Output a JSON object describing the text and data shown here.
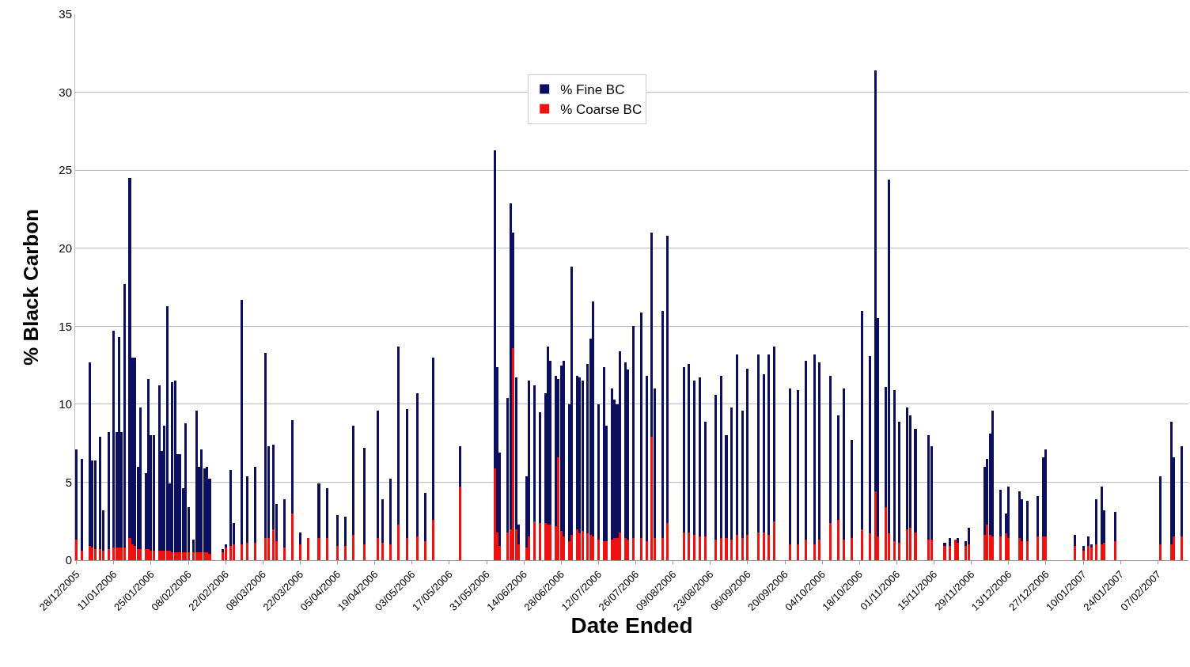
{
  "chart_data": {
    "type": "bar",
    "stacked": true,
    "xlabel": "Date Ended",
    "ylabel": "% Black Carbon",
    "ylim": [
      0,
      35
    ],
    "yticks": [
      0,
      5,
      10,
      15,
      20,
      25,
      30,
      35
    ],
    "grid": "y",
    "legend": "top",
    "xlim": [
      "2005-12-27T12:00",
      "2007-02-18T12:00"
    ],
    "xticks": [
      {
        "value": "2005-12-28",
        "label": "28/12/2005"
      },
      {
        "value": "2006-01-11",
        "label": "11/01/2006"
      },
      {
        "value": "2006-01-25",
        "label": "25/01/2006"
      },
      {
        "value": "2006-02-08",
        "label": "08/02/2006"
      },
      {
        "value": "2006-02-22",
        "label": "22/02/2006"
      },
      {
        "value": "2006-03-08",
        "label": "08/03/2006"
      },
      {
        "value": "2006-03-22",
        "label": "22/03/2006"
      },
      {
        "value": "2006-04-05",
        "label": "05/04/2006"
      },
      {
        "value": "2006-04-19",
        "label": "19/04/2006"
      },
      {
        "value": "2006-05-03",
        "label": "03/05/2006"
      },
      {
        "value": "2006-05-17",
        "label": "17/05/2006"
      },
      {
        "value": "2006-05-31",
        "label": "31/05/2006"
      },
      {
        "value": "2006-06-14",
        "label": "14/06/2006"
      },
      {
        "value": "2006-06-28",
        "label": "28/06/2006"
      },
      {
        "value": "2006-07-12",
        "label": "12/07/2006"
      },
      {
        "value": "2006-07-26",
        "label": "26/07/2006"
      },
      {
        "value": "2006-08-09",
        "label": "09/08/2006"
      },
      {
        "value": "2006-08-23",
        "label": "23/08/2006"
      },
      {
        "value": "2006-09-06",
        "label": "06/09/2006"
      },
      {
        "value": "2006-09-20",
        "label": "20/09/2006"
      },
      {
        "value": "2006-10-04",
        "label": "04/10/2006"
      },
      {
        "value": "2006-10-18",
        "label": "18/10/2006"
      },
      {
        "value": "2006-11-01",
        "label": "01/11/2006"
      },
      {
        "value": "2006-11-15",
        "label": "15/11/2006"
      },
      {
        "value": "2006-11-29",
        "label": "29/11/2006"
      },
      {
        "value": "2006-12-13",
        "label": "13/12/2006"
      },
      {
        "value": "2006-12-27",
        "label": "27/12/2006"
      },
      {
        "value": "2007-01-10",
        "label": "10/01/2007"
      },
      {
        "value": "2007-01-24",
        "label": "24/01/2007"
      },
      {
        "value": "2007-02-07",
        "label": "07/02/2007"
      }
    ],
    "x": [
      "2005-12-28",
      "2005-12-30",
      "2006-01-02",
      "2006-01-03",
      "2006-01-04",
      "2006-01-06",
      "2006-01-07",
      "2006-01-09",
      "2006-01-11",
      "2006-01-12",
      "2006-01-13",
      "2006-01-14",
      "2006-01-15",
      "2006-01-17",
      "2006-01-18",
      "2006-01-19",
      "2006-01-20",
      "2006-01-21",
      "2006-01-23",
      "2006-01-24",
      "2006-01-25",
      "2006-01-26",
      "2006-01-28",
      "2006-01-29",
      "2006-01-30",
      "2006-01-31",
      "2006-02-01",
      "2006-02-02",
      "2006-02-03",
      "2006-02-04",
      "2006-02-05",
      "2006-02-06",
      "2006-02-07",
      "2006-02-08",
      "2006-02-10",
      "2006-02-11",
      "2006-02-12",
      "2006-02-13",
      "2006-02-14",
      "2006-02-15",
      "2006-02-16",
      "2006-02-21",
      "2006-02-22",
      "2006-02-24",
      "2006-02-25",
      "2006-02-28",
      "2006-03-02",
      "2006-03-05",
      "2006-03-09",
      "2006-03-10",
      "2006-03-12",
      "2006-03-13",
      "2006-03-16",
      "2006-03-19",
      "2006-03-22",
      "2006-03-25",
      "2006-03-29",
      "2006-04-01",
      "2006-04-05",
      "2006-04-08",
      "2006-04-11",
      "2006-04-15",
      "2006-04-20",
      "2006-04-22",
      "2006-04-25",
      "2006-04-28",
      "2006-05-01",
      "2006-05-05",
      "2006-05-08",
      "2006-05-11",
      "2006-05-21",
      "2006-06-03",
      "2006-06-04",
      "2006-06-05",
      "2006-06-08",
      "2006-06-09",
      "2006-06-10",
      "2006-06-11",
      "2006-06-12",
      "2006-06-15",
      "2006-06-16",
      "2006-06-18",
      "2006-06-20",
      "2006-06-22",
      "2006-06-23",
      "2006-06-24",
      "2006-06-26",
      "2006-06-27",
      "2006-06-28",
      "2006-06-29",
      "2006-07-01",
      "2006-07-02",
      "2006-07-04",
      "2006-07-05",
      "2006-07-06",
      "2006-07-08",
      "2006-07-09",
      "2006-07-10",
      "2006-07-12",
      "2006-07-14",
      "2006-07-15",
      "2006-07-17",
      "2006-07-18",
      "2006-07-19",
      "2006-07-20",
      "2006-07-22",
      "2006-07-23",
      "2006-07-25",
      "2006-07-28",
      "2006-07-30",
      "2006-08-01",
      "2006-08-02",
      "2006-08-05",
      "2006-08-07",
      "2006-08-13",
      "2006-08-15",
      "2006-08-17",
      "2006-08-19",
      "2006-08-21",
      "2006-08-25",
      "2006-08-27",
      "2006-08-29",
      "2006-08-31",
      "2006-09-02",
      "2006-09-04",
      "2006-09-06",
      "2006-09-10",
      "2006-09-12",
      "2006-09-14",
      "2006-09-16",
      "2006-09-22",
      "2006-09-25",
      "2006-09-28",
      "2006-10-01",
      "2006-10-03",
      "2006-10-07",
      "2006-10-10",
      "2006-10-12",
      "2006-10-15",
      "2006-10-19",
      "2006-10-22",
      "2006-10-24",
      "2006-10-25",
      "2006-10-28",
      "2006-10-29",
      "2006-10-31",
      "2006-11-02",
      "2006-11-05",
      "2006-11-06",
      "2006-11-08",
      "2006-11-13",
      "2006-11-14",
      "2006-11-19",
      "2006-11-21",
      "2006-11-23",
      "2006-11-24",
      "2006-11-27",
      "2006-11-28",
      "2006-12-04",
      "2006-12-05",
      "2006-12-06",
      "2006-12-07",
      "2006-12-10",
      "2006-12-12",
      "2006-12-13",
      "2006-12-17",
      "2006-12-18",
      "2006-12-20",
      "2006-12-24",
      "2006-12-26",
      "2006-12-27",
      "2007-01-07",
      "2007-01-10",
      "2007-01-12",
      "2007-01-13",
      "2007-01-15",
      "2007-01-17",
      "2007-01-18",
      "2007-01-22",
      "2007-02-08",
      "2007-02-12",
      "2007-02-13",
      "2007-02-16"
    ],
    "series": [
      {
        "name": "% Coarse BC",
        "color": "#ee1111",
        "values": [
          1.3,
          0.6,
          0.9,
          0.8,
          0.7,
          0.7,
          0.6,
          0.7,
          0.8,
          0.8,
          0.8,
          0.8,
          0.8,
          1.4,
          1.0,
          0.9,
          0.7,
          0.7,
          0.7,
          0.7,
          0.6,
          0.6,
          0.6,
          0.6,
          0.6,
          0.6,
          0.6,
          0.5,
          0.5,
          0.5,
          0.5,
          0.5,
          0.5,
          0.5,
          0.5,
          0.5,
          0.5,
          0.5,
          0.5,
          0.5,
          0.4,
          0.5,
          0.8,
          0.9,
          1.0,
          1.0,
          1.1,
          1.1,
          1.4,
          1.4,
          2.0,
          1.2,
          0.8,
          3.0,
          1.0,
          1.4,
          1.4,
          1.4,
          0.9,
          0.9,
          1.6,
          1.0,
          1.4,
          1.1,
          1.0,
          2.3,
          1.4,
          1.5,
          1.2,
          2.6,
          4.7,
          5.9,
          1.8,
          0.9,
          1.8,
          2.0,
          13.6,
          2.0,
          1.0,
          0.8,
          1.5,
          2.5,
          2.4,
          2.4,
          2.3,
          2.3,
          2.2,
          6.6,
          1.9,
          1.5,
          1.2,
          1.6,
          2.0,
          1.7,
          1.9,
          1.7,
          1.6,
          1.5,
          1.3,
          1.2,
          1.2,
          1.3,
          1.4,
          1.4,
          1.8,
          1.4,
          1.3,
          1.4,
          1.4,
          1.2,
          7.9,
          1.4,
          1.4,
          2.4,
          1.8,
          1.8,
          1.6,
          1.5,
          1.5,
          1.3,
          1.4,
          1.4,
          1.3,
          1.6,
          1.4,
          1.6,
          1.8,
          1.8,
          1.6,
          2.5,
          1.0,
          1.0,
          1.3,
          1.0,
          1.3,
          2.4,
          2.6,
          1.3,
          1.4,
          2.0,
          1.7,
          4.4,
          1.5,
          3.4,
          1.7,
          1.2,
          1.1,
          2.0,
          2.1,
          1.8,
          1.3,
          1.3,
          0.9,
          0.9,
          1.3,
          1.1,
          0.9,
          1.0,
          1.6,
          2.3,
          1.6,
          1.5,
          1.5,
          1.7,
          1.4,
          1.4,
          1.2,
          1.2,
          1.5,
          1.5,
          1.5,
          0.9,
          0.6,
          0.9,
          0.8,
          1.0,
          1.0,
          1.1,
          1.2,
          1.0,
          1.0,
          1.5,
          1.5
        ]
      },
      {
        "name": "% Fine BC",
        "color": "#0c0f5e",
        "values": [
          5.8,
          5.9,
          11.8,
          5.6,
          5.7,
          7.2,
          2.6,
          7.5,
          13.9,
          7.4,
          13.5,
          7.4,
          16.9,
          23.1,
          12.0,
          12.1,
          5.3,
          9.1,
          4.9,
          10.9,
          7.4,
          7.4,
          10.6,
          6.4,
          8.0,
          15.7,
          4.3,
          10.9,
          11.0,
          6.3,
          6.3,
          4.1,
          8.3,
          2.9,
          0.8,
          9.1,
          5.5,
          6.6,
          5.4,
          5.5,
          4.8,
          0.2,
          0.2,
          4.9,
          1.4,
          15.7,
          4.3,
          4.9,
          11.9,
          5.9,
          5.4,
          2.4,
          3.1,
          6.0,
          0.8,
          0,
          3.5,
          3.2,
          2.0,
          1.9,
          7.0,
          6.2,
          8.2,
          2.8,
          4.2,
          11.4,
          8.3,
          9.2,
          3.1,
          10.4,
          2.6,
          20.4,
          10.6,
          6.0,
          8.6,
          20.9,
          7.4,
          9.7,
          1.3,
          4.6,
          10.0,
          8.7,
          7.1,
          8.3,
          11.4,
          10.5,
          9.6,
          5.0,
          10.6,
          11.3,
          8.8,
          17.2,
          9.8,
          10.0,
          9.6,
          10.9,
          12.6,
          15.1,
          8.7,
          11.2,
          7.4,
          9.7,
          8.9,
          8.6,
          11.6,
          11.3,
          10.9,
          13.6,
          14.5,
          10.6,
          13.1,
          9.6,
          14.6,
          18.4,
          10.6,
          10.8,
          9.9,
          10.2,
          7.4,
          9.3,
          10.4,
          6.6,
          8.5,
          11.6,
          8.2,
          10.7,
          11.4,
          10.1,
          11.6,
          11.2,
          10.0,
          9.9,
          11.5,
          12.2,
          11.4,
          9.4,
          6.7,
          9.7,
          6.3,
          14.0,
          11.4,
          27.0,
          14.0,
          7.7,
          22.7,
          9.7,
          7.8,
          7.8,
          7.2,
          6.6,
          6.7,
          6.0,
          0.2,
          0.5,
          0,
          0.3,
          0.3,
          1.1,
          4.4,
          4.2,
          6.5,
          8.1,
          3.0,
          1.3,
          3.3,
          3.0,
          2.7,
          2.6,
          2.6,
          5.1,
          5.6,
          0.7,
          0.3,
          0.6,
          0.2,
          2.9,
          3.7,
          2.1,
          1.9,
          4.4,
          7.9,
          5.1,
          5.8
        ]
      }
    ]
  }
}
